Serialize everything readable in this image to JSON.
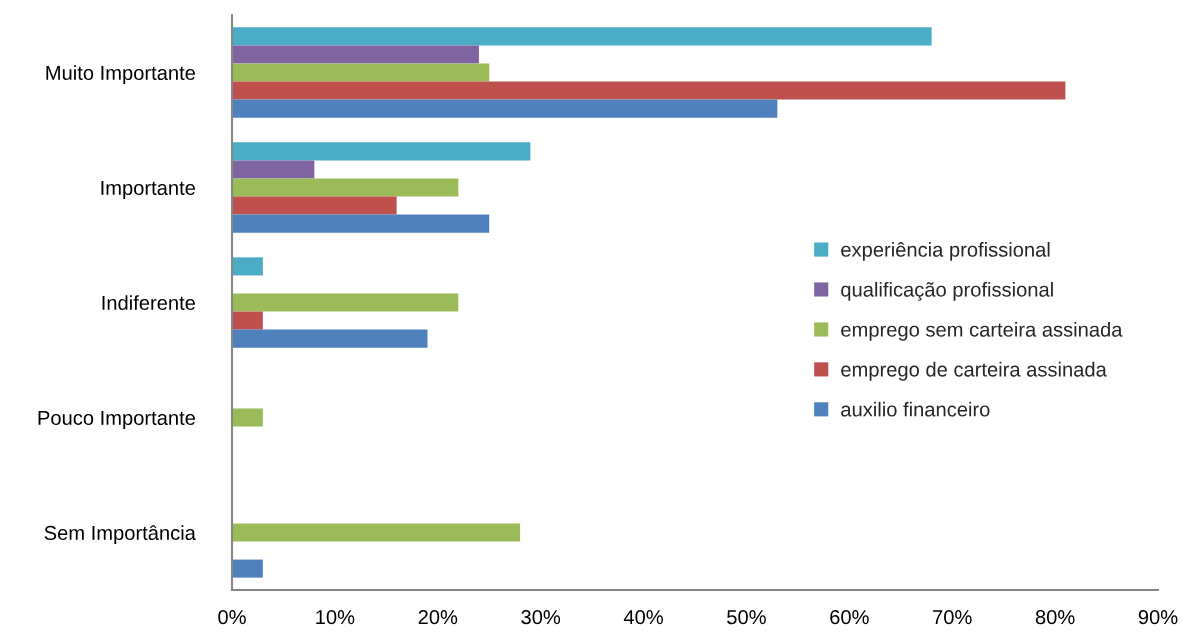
{
  "chart_data": {
    "type": "bar",
    "orientation": "horizontal",
    "categories": [
      "Muito Importante",
      "Importante",
      "Indiferente",
      "Pouco Importante",
      "Sem Importância"
    ],
    "series": [
      {
        "name": "experiência profissional",
        "color": "#4bacc6",
        "values": [
          68,
          29,
          3,
          0,
          0
        ]
      },
      {
        "name": "qualificação profissional",
        "color": "#8064a2",
        "values": [
          24,
          8,
          0,
          0,
          0
        ]
      },
      {
        "name": "emprego sem carteira assinada",
        "color": "#9bbb59",
        "values": [
          25,
          22,
          22,
          3,
          28
        ]
      },
      {
        "name": "emprego de carteira assinada",
        "color": "#c0504d",
        "values": [
          81,
          16,
          3,
          0,
          0
        ]
      },
      {
        "name": "auxilio financeiro",
        "color": "#4f81bd",
        "values": [
          53,
          25,
          19,
          0,
          3
        ]
      }
    ],
    "xlim": [
      0,
      90
    ],
    "xticks": [
      {
        "value": 0,
        "label": "0%"
      },
      {
        "value": 10,
        "label": "10%"
      },
      {
        "value": 20,
        "label": "20%"
      },
      {
        "value": 30,
        "label": "30%"
      },
      {
        "value": 40,
        "label": "40%"
      },
      {
        "value": 50,
        "label": "50%"
      },
      {
        "value": 60,
        "label": "60%"
      },
      {
        "value": 70,
        "label": "70%"
      },
      {
        "value": 80,
        "label": "80%"
      },
      {
        "value": 90,
        "label": "90%"
      }
    ],
    "legend": "right"
  }
}
